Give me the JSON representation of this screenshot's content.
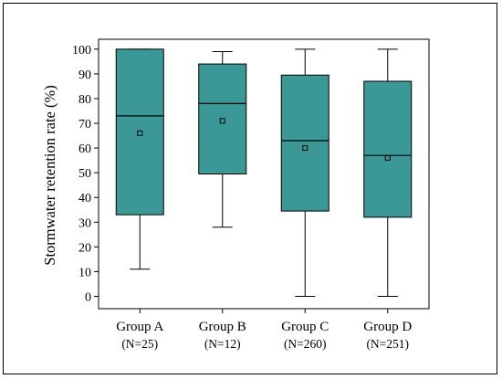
{
  "colors": {
    "box_fill": "#3a9896",
    "stroke": "#000000",
    "background": "#ffffff"
  },
  "chart_data": {
    "type": "box",
    "title": "",
    "xlabel": "",
    "ylabel": "Stormwater retention rate (%)",
    "ylim": [
      -5,
      104
    ],
    "yticks": [
      0,
      10,
      20,
      30,
      40,
      50,
      60,
      70,
      80,
      90,
      100
    ],
    "grid": false,
    "legend": "none",
    "categories": [
      {
        "name": "Group A",
        "n_label": "(N=25)",
        "whisker_low": 11,
        "q1": 33,
        "median": 73,
        "q3": 100,
        "whisker_high": 100,
        "mean": 66
      },
      {
        "name": "Group B",
        "n_label": "(N=12)",
        "whisker_low": 28,
        "q1": 49.5,
        "median": 78,
        "q3": 94,
        "whisker_high": 99,
        "mean": 71
      },
      {
        "name": "Group C",
        "n_label": "(N=260)",
        "whisker_low": 0,
        "q1": 34.5,
        "median": 63,
        "q3": 89.5,
        "whisker_high": 100,
        "mean": 60
      },
      {
        "name": "Group D",
        "n_label": "(N=251)",
        "whisker_low": 0,
        "q1": 32,
        "median": 57,
        "q3": 87,
        "whisker_high": 100,
        "mean": 56
      }
    ]
  }
}
